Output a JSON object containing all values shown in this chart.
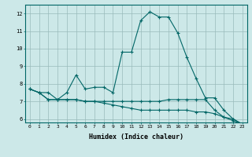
{
  "xlabel": "Humidex (Indice chaleur)",
  "bg_color": "#cce8e8",
  "grid_color": "#99bbbb",
  "line_color": "#006666",
  "xlim": [
    -0.5,
    23.5
  ],
  "ylim": [
    5.8,
    12.5
  ],
  "yticks": [
    6,
    7,
    8,
    9,
    10,
    11,
    12
  ],
  "xticks": [
    0,
    1,
    2,
    3,
    4,
    5,
    6,
    7,
    8,
    9,
    10,
    11,
    12,
    13,
    14,
    15,
    16,
    17,
    18,
    19,
    20,
    21,
    22,
    23
  ],
  "series": [
    {
      "x": [
        0,
        1,
        2,
        3,
        4,
        5,
        6,
        7,
        8,
        9,
        10,
        11,
        12,
        13,
        14,
        15,
        16,
        17,
        18,
        19,
        20,
        21,
        22,
        23
      ],
      "y": [
        7.7,
        7.5,
        7.5,
        7.1,
        7.5,
        8.5,
        7.7,
        7.8,
        7.8,
        7.5,
        9.8,
        9.8,
        11.6,
        12.1,
        11.8,
        11.8,
        10.9,
        9.5,
        8.3,
        7.2,
        7.2,
        6.5,
        6.0,
        5.7
      ]
    },
    {
      "x": [
        0,
        1,
        2,
        3,
        4,
        5,
        6,
        7,
        8,
        9,
        10,
        11,
        12,
        13,
        14,
        15,
        16,
        17,
        18,
        19,
        20,
        21,
        22,
        23
      ],
      "y": [
        7.7,
        7.5,
        7.1,
        7.1,
        7.1,
        7.1,
        7.0,
        7.0,
        7.0,
        7.0,
        7.0,
        7.0,
        7.0,
        7.0,
        7.0,
        7.1,
        7.1,
        7.1,
        7.1,
        7.1,
        6.5,
        6.1,
        6.0,
        5.7
      ]
    },
    {
      "x": [
        0,
        1,
        2,
        3,
        4,
        5,
        6,
        7,
        8,
        9,
        10,
        11,
        12,
        13,
        14,
        15,
        16,
        17,
        18,
        19,
        20,
        21,
        22,
        23
      ],
      "y": [
        7.7,
        7.5,
        7.1,
        7.1,
        7.1,
        7.1,
        7.0,
        7.0,
        6.9,
        6.8,
        6.7,
        6.6,
        6.5,
        6.5,
        6.5,
        6.5,
        6.5,
        6.5,
        6.4,
        6.4,
        6.3,
        6.1,
        5.9,
        5.7
      ]
    }
  ]
}
